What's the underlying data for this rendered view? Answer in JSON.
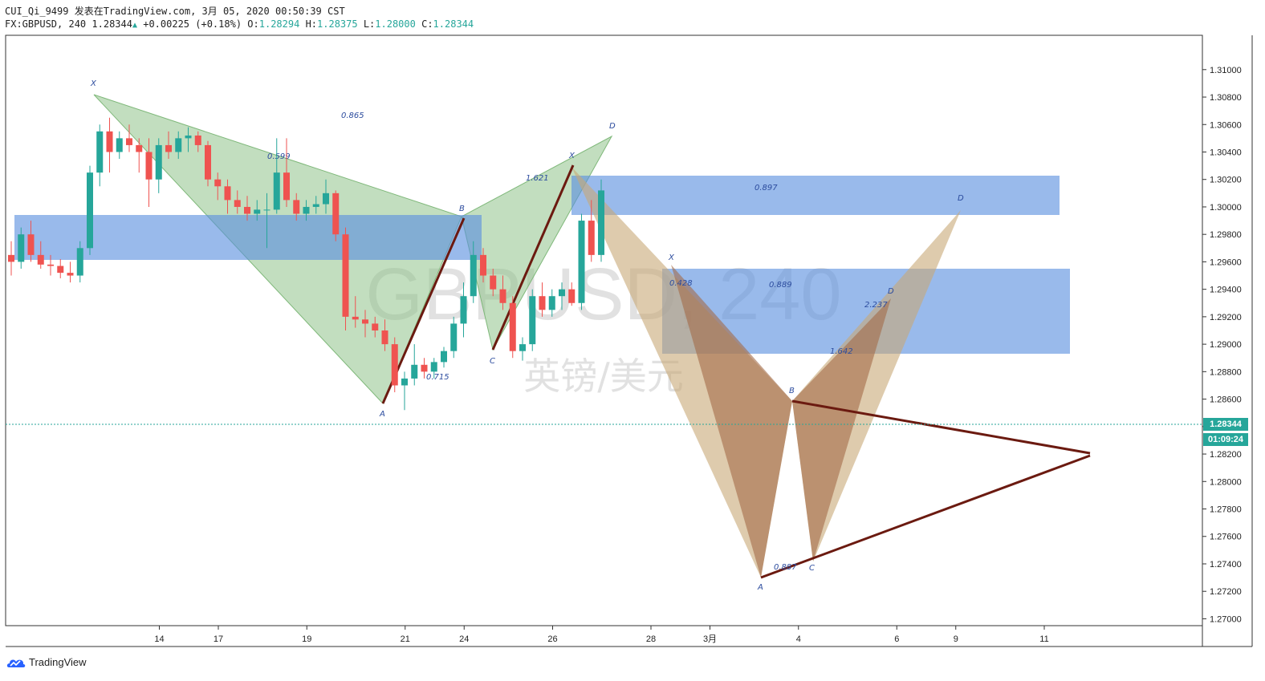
{
  "header": {
    "line1": "CUI_Qi_9499 发表在TradingView.com, 3月 05, 2020 00:50:39 CST",
    "symbol": "FX:GBPUSD, 240",
    "last": "1.28344",
    "arrow": "▲",
    "change": "+0.00225 (+0.18%)",
    "o_label": "O:",
    "o": "1.28294",
    "h_label": "H:",
    "h": "1.28375",
    "l_label": "L:",
    "l": "1.28000",
    "c_label": "C:",
    "c": "1.28344"
  },
  "watermark": {
    "symbol": "GBPUSD, 240",
    "name": "英镑/美元"
  },
  "price_tag": {
    "price": "1.28344",
    "countdown": "01:09:24"
  },
  "footer": {
    "brand": "TradingView"
  },
  "colors": {
    "up": "#26a69a",
    "down": "#ef5350",
    "green_fill": "#8fc38a",
    "blue_fill": "#6f9ee3",
    "tan_fill": "#c8a877",
    "brown_fill": "#a36a48",
    "trendline": "#6b1a10"
  },
  "chart_data": {
    "type": "candlestick",
    "ylim": [
      1.2695,
      1.3125
    ],
    "y_ticks": [
      "1.31000",
      "1.30800",
      "1.30600",
      "1.30400",
      "1.30200",
      "1.30000",
      "1.29800",
      "1.29600",
      "1.29400",
      "1.29200",
      "1.29000",
      "1.28800",
      "1.28600",
      "1.28400",
      "1.28200",
      "1.28000",
      "1.27800",
      "1.27600",
      "1.27400",
      "1.27200",
      "1.27000"
    ],
    "x_ticks": [
      {
        "label": "14",
        "i": 14
      },
      {
        "label": "17",
        "i": 20
      },
      {
        "label": "19",
        "i": 29
      },
      {
        "label": "21",
        "i": 39
      },
      {
        "label": "24",
        "i": 45
      },
      {
        "label": "26",
        "i": 54
      },
      {
        "label": "28",
        "i": 64
      },
      {
        "label": "3月",
        "i": 70
      },
      {
        "label": "4",
        "i": 79
      },
      {
        "label": "6",
        "i": 89
      },
      {
        "label": "9",
        "i": 95
      },
      {
        "label": "11",
        "i": 104
      }
    ],
    "candles": [
      [
        1.2965,
        1.2975,
        1.295,
        1.296
      ],
      [
        1.296,
        1.2985,
        1.2955,
        1.298
      ],
      [
        1.298,
        1.299,
        1.296,
        1.2965
      ],
      [
        1.2965,
        1.2975,
        1.2955,
        1.2958
      ],
      [
        1.2958,
        1.2965,
        1.295,
        1.2957
      ],
      [
        1.2957,
        1.2962,
        1.2948,
        1.2952
      ],
      [
        1.2952,
        1.296,
        1.2945,
        1.295
      ],
      [
        1.295,
        1.2975,
        1.2945,
        1.297
      ],
      [
        1.297,
        1.303,
        1.2965,
        1.3025
      ],
      [
        1.3025,
        1.306,
        1.3015,
        1.3055
      ],
      [
        1.3055,
        1.3065,
        1.3025,
        1.304
      ],
      [
        1.304,
        1.3055,
        1.3035,
        1.305
      ],
      [
        1.305,
        1.306,
        1.304,
        1.3045
      ],
      [
        1.3045,
        1.305,
        1.3025,
        1.304
      ],
      [
        1.304,
        1.305,
        1.3,
        1.302
      ],
      [
        1.302,
        1.305,
        1.301,
        1.3045
      ],
      [
        1.3045,
        1.3055,
        1.3035,
        1.304
      ],
      [
        1.304,
        1.3055,
        1.3035,
        1.305
      ],
      [
        1.305,
        1.3058,
        1.304,
        1.3052
      ],
      [
        1.3052,
        1.3055,
        1.304,
        1.3045
      ],
      [
        1.3045,
        1.3048,
        1.3015,
        1.302
      ],
      [
        1.302,
        1.3025,
        1.3005,
        1.3015
      ],
      [
        1.3015,
        1.302,
        1.2995,
        1.3005
      ],
      [
        1.3005,
        1.3012,
        1.2995,
        1.3
      ],
      [
        1.3,
        1.3008,
        1.299,
        1.2995
      ],
      [
        1.2995,
        1.3005,
        1.299,
        1.2998
      ],
      [
        1.2998,
        1.301,
        1.297,
        1.2998
      ],
      [
        1.2998,
        1.305,
        1.2995,
        1.3025
      ],
      [
        1.3025,
        1.305,
        1.3,
        1.3005
      ],
      [
        1.3005,
        1.301,
        1.299,
        1.2995
      ],
      [
        1.2995,
        1.3005,
        1.299,
        1.3
      ],
      [
        1.3,
        1.3008,
        1.2995,
        1.3002
      ],
      [
        1.3002,
        1.302,
        1.2995,
        1.301
      ],
      [
        1.301,
        1.3012,
        1.2975,
        1.298
      ],
      [
        1.298,
        1.2985,
        1.291,
        1.292
      ],
      [
        1.292,
        1.2935,
        1.2912,
        1.2918
      ],
      [
        1.2918,
        1.2925,
        1.2905,
        1.2915
      ],
      [
        1.2915,
        1.292,
        1.2905,
        1.291
      ],
      [
        1.291,
        1.2918,
        1.2895,
        1.29
      ],
      [
        1.29,
        1.2905,
        1.2865,
        1.287
      ],
      [
        1.287,
        1.288,
        1.2852,
        1.2875
      ],
      [
        1.2875,
        1.29,
        1.287,
        1.2885
      ],
      [
        1.2885,
        1.289,
        1.2875,
        1.288
      ],
      [
        1.288,
        1.289,
        1.2875,
        1.2887
      ],
      [
        1.2887,
        1.2898,
        1.2883,
        1.2895
      ],
      [
        1.2895,
        1.292,
        1.289,
        1.2915
      ],
      [
        1.2915,
        1.2945,
        1.2905,
        1.2935
      ],
      [
        1.2935,
        1.2975,
        1.293,
        1.2965
      ],
      [
        1.2965,
        1.297,
        1.2945,
        1.295
      ],
      [
        1.295,
        1.2955,
        1.2935,
        1.294
      ],
      [
        1.294,
        1.295,
        1.2925,
        1.293
      ],
      [
        1.293,
        1.2935,
        1.289,
        1.2895
      ],
      [
        1.2895,
        1.2905,
        1.2888,
        1.29
      ],
      [
        1.29,
        1.294,
        1.2895,
        1.2935
      ],
      [
        1.2935,
        1.2945,
        1.292,
        1.2925
      ],
      [
        1.2925,
        1.294,
        1.292,
        1.2935
      ],
      [
        1.2935,
        1.2945,
        1.2925,
        1.294
      ],
      [
        1.294,
        1.2945,
        1.2928,
        1.293
      ],
      [
        1.293,
        1.2995,
        1.2925,
        1.299
      ],
      [
        1.299,
        1.3005,
        1.296,
        1.2965
      ],
      [
        1.2965,
        1.302,
        1.296,
        1.3012
      ]
    ]
  }
}
